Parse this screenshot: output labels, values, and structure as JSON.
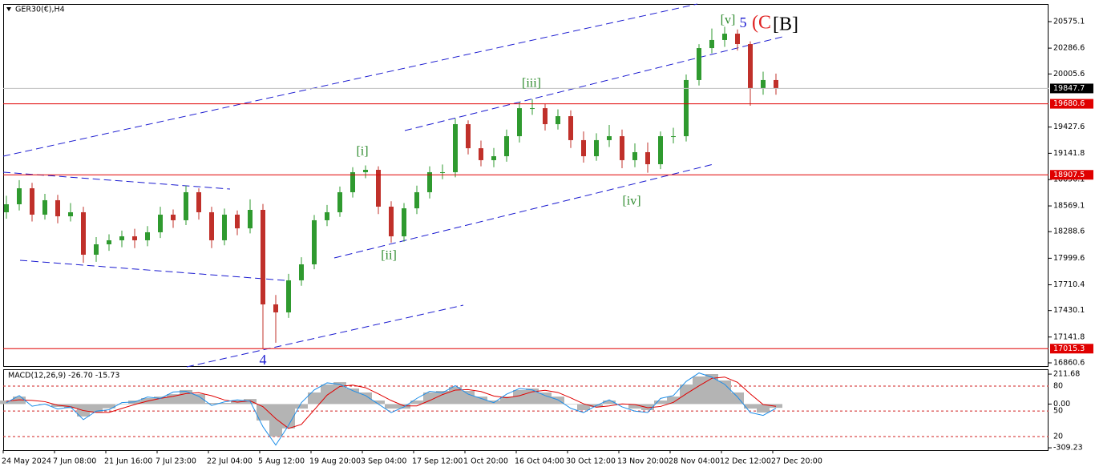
{
  "chart_data": [
    {
      "type": "candlestick",
      "title": "GER30(€),H4",
      "categories": [
        "24 May 2024",
        null,
        null,
        null,
        "7 Jun 08:00",
        null,
        null,
        null,
        "21 Jun 16:00",
        null,
        null,
        null,
        "7 Jul 23:00",
        null,
        null,
        null,
        "22 Jul 04:00",
        null,
        null,
        null,
        "5 Aug 12:00",
        null,
        null,
        null,
        "19 Aug 20:00",
        null,
        null,
        null,
        "3 Sep 04:00",
        null,
        null,
        null,
        "17 Sep 12:00",
        null,
        null,
        null,
        "1 Oct 20:00",
        null,
        null,
        null,
        "16 Oct 04:00",
        null,
        null,
        null,
        "30 Oct 12:00",
        null,
        null,
        null,
        "13 Nov 20:00",
        null,
        null,
        null,
        "28 Nov 04:00",
        null,
        null,
        null,
        "12 Dec 12:00",
        null,
        null,
        null,
        "27 Dec 20:00"
      ],
      "open": [
        18500,
        18587,
        18761,
        18474,
        18631,
        18456,
        18500,
        18038,
        18151,
        18195,
        18238,
        18195,
        18282,
        18474,
        18413,
        18718,
        18500,
        18195,
        18474,
        18325,
        18526,
        17497,
        17410,
        17759,
        17933,
        18413,
        18500,
        18718,
        18936,
        18962,
        18561,
        18238,
        18543,
        18718,
        18936,
        18936,
        19459,
        19197,
        19067,
        19110,
        19328,
        19633,
        19633,
        19459,
        19546,
        19285,
        19110,
        19285,
        19328,
        19067,
        19154,
        19023,
        19328,
        19328,
        19939,
        20287,
        20375,
        20444,
        20331,
        19851,
        19939
      ],
      "high": [
        18680,
        18850,
        18820,
        18700,
        18690,
        18600,
        18560,
        18230,
        18260,
        18300,
        18320,
        18350,
        18560,
        18530,
        18790,
        18760,
        18560,
        18540,
        18520,
        18640,
        18590,
        17600,
        17830,
        18010,
        18470,
        18580,
        18780,
        18990,
        19010,
        19000,
        18620,
        18600,
        18790,
        19000,
        19020,
        19520,
        19500,
        19280,
        19200,
        19400,
        19700,
        19730,
        19680,
        19620,
        19610,
        19380,
        19360,
        19450,
        19400,
        19250,
        19260,
        19380,
        19420,
        20000,
        20330,
        20500,
        20520,
        20490,
        20360,
        20030,
        20010
      ],
      "low": [
        18430,
        18520,
        18400,
        18420,
        18380,
        18400,
        17950,
        17960,
        18080,
        18120,
        18110,
        18130,
        18220,
        18330,
        18360,
        18420,
        18110,
        18140,
        18250,
        18270,
        17015,
        17080,
        17350,
        17700,
        17880,
        18350,
        18450,
        18660,
        18870,
        18480,
        18170,
        18180,
        18480,
        18650,
        18860,
        18880,
        19130,
        19000,
        18990,
        19050,
        19260,
        19560,
        19390,
        19400,
        19200,
        19040,
        19060,
        19210,
        18980,
        18990,
        18930,
        18970,
        19250,
        19270,
        19880,
        20230,
        20300,
        20260,
        19660,
        19780,
        19780
      ],
      "close": [
        18587,
        18761,
        18474,
        18631,
        18456,
        18500,
        18038,
        18151,
        18195,
        18238,
        18195,
        18282,
        18474,
        18413,
        18718,
        18500,
        18195,
        18474,
        18325,
        18526,
        17497,
        17410,
        17759,
        17933,
        18413,
        18500,
        18718,
        18936,
        18962,
        18561,
        18238,
        18543,
        18718,
        18936,
        18936,
        19459,
        19197,
        19067,
        19110,
        19328,
        19633,
        19633,
        19459,
        19546,
        19285,
        19110,
        19285,
        19328,
        19067,
        19154,
        19023,
        19328,
        19328,
        19939,
        20287,
        20375,
        20444,
        20331,
        19851,
        19939,
        19848
      ],
      "up_color": "#2f9a2f",
      "down_color": "#c0302a",
      "ylim": [
        16817,
        20767
      ],
      "yticks": [
        16860.6,
        17141.8,
        17430.1,
        17710.4,
        17999.6,
        18288.6,
        18569.1,
        18856.1,
        19141.8,
        19427.6,
        20005.6,
        20286.6,
        20575.1
      ],
      "levels": [
        {
          "value": 19847.7,
          "color": "#c0c0c0",
          "label_fill": "#000000"
        },
        {
          "value": 19680.6,
          "color": "#e00000",
          "label_fill": "#e00000"
        },
        {
          "value": 18907.5,
          "color": "#e00000",
          "label_fill": "#e00000"
        },
        {
          "value": 17015.3,
          "color": "#e00000",
          "label_fill": "#e00000"
        }
      ],
      "annotations": [
        {
          "text": "[i]",
          "color": "#2e8b2e"
        },
        {
          "text": "[ii]",
          "color": "#2e8b2e"
        },
        {
          "text": "[iii]",
          "color": "#2e8b2e"
        },
        {
          "text": "[iv]",
          "color": "#2e8b2e"
        },
        {
          "text": "[v]",
          "color": "#2e8b2e"
        },
        {
          "text": "5",
          "color": "#1a1ad0"
        },
        {
          "text": "(C",
          "color": "#e02020"
        },
        {
          "text": "[B]",
          "color": "#000000"
        },
        {
          "text": "4",
          "color": "#1a1ad0"
        }
      ],
      "grid": false
    },
    {
      "type": "combo",
      "title": "MACD(12,26,9) -26.70 -15.73",
      "ylim": [
        -326,
        246
      ],
      "yticks": [
        -309.23,
        {
          "value": 0,
          "label": "0.00"
        },
        211.68
      ],
      "levels": [
        {
          "value": 127,
          "label": "80"
        },
        {
          "value": -49,
          "label": "50"
        },
        {
          "value": -230,
          "label": "20"
        }
      ],
      "series": [
        {
          "kind": "bar",
          "color": "#b4b4b4",
          "values": [
            25,
            53,
            0,
            -3,
            -20,
            -30,
            -88,
            -60,
            -30,
            -3,
            25,
            42,
            53,
            70,
            99,
            70,
            8,
            8,
            25,
            36,
            -116,
            -229,
            -172,
            -32,
            82,
            138,
            155,
            110,
            82,
            25,
            -32,
            -32,
            25,
            82,
            93,
            121,
            93,
            53,
            25,
            53,
            99,
            110,
            82,
            53,
            -3,
            -43,
            -20,
            25,
            -3,
            -32,
            -43,
            25,
            53,
            138,
            195,
            212,
            167,
            82,
            -32,
            -60,
            -26.7
          ]
        },
        {
          "kind": "line",
          "color": "#e00000",
          "values": [
            20,
            30,
            26,
            17,
            -8,
            -18,
            -46,
            -59,
            -59,
            -31,
            -3,
            21,
            40,
            55,
            74,
            80,
            59,
            29,
            14,
            23,
            -18,
            -103,
            -172,
            -144,
            -41,
            63,
            125,
            134,
            116,
            72,
            25,
            -13,
            -13,
            25,
            67,
            99,
            102,
            89,
            57,
            44,
            59,
            87,
            97,
            82,
            44,
            2,
            -22,
            -13,
            1,
            -3,
            -26,
            -17,
            12,
            72,
            129,
            182,
            191,
            154,
            72,
            -3,
            -15.73
          ]
        },
        {
          "kind": "line",
          "color": "#1e8ee8",
          "values": [
            10,
            60,
            -15,
            0,
            -35,
            -20,
            -110,
            -50,
            -40,
            10,
            15,
            50,
            40,
            85,
            90,
            55,
            -10,
            15,
            30,
            20,
            -160,
            -290,
            -150,
            10,
            100,
            150,
            140,
            95,
            60,
            0,
            -60,
            -20,
            40,
            90,
            80,
            130,
            70,
            40,
            10,
            70,
            110,
            100,
            60,
            30,
            -30,
            -60,
            -10,
            30,
            -20,
            -50,
            -60,
            40,
            60,
            160,
            220,
            190,
            140,
            50,
            -60,
            -80,
            -30
          ]
        }
      ]
    }
  ]
}
